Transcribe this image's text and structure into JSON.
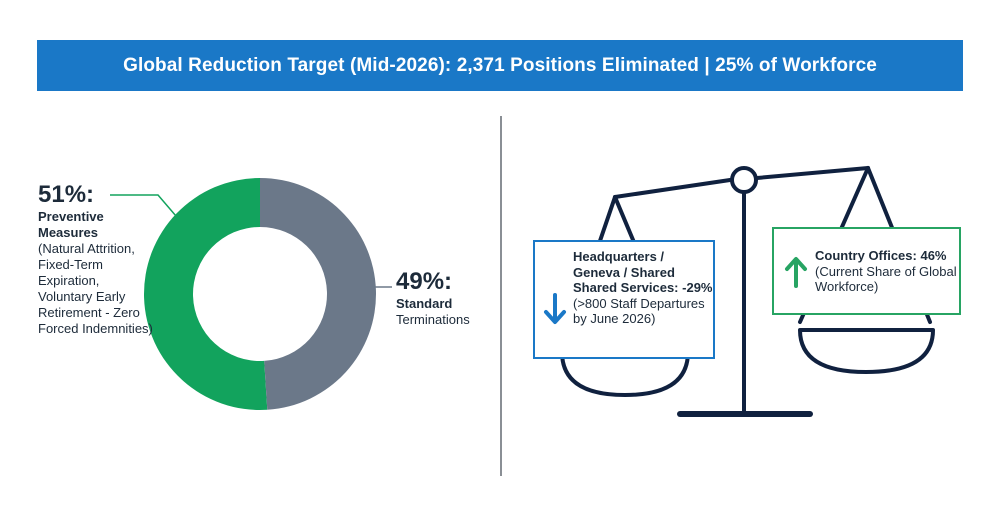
{
  "header": {
    "title": "Global Reduction Target (Mid-2026): 2,371 Positions Eliminated | 25% of Workforce"
  },
  "chart_data": {
    "type": "pie",
    "style": "donut",
    "slices": [
      {
        "pct_label": "51%:",
        "category": "Preventive Measures",
        "detail": "(Natural Attrition, Fixed-Term Expiration, Voluntary Early Retirement - Zero Forced Indemnities)",
        "value": 51,
        "color": "#12a35d"
      },
      {
        "pct_label": "49%:",
        "category": "Standard",
        "detail": "Terminations",
        "value": 49,
        "color": "#6b7889"
      }
    ]
  },
  "scale": {
    "color": "#10213f",
    "left_box": {
      "title": "Headquarters / Geneva / Shared Shared Services:",
      "value": "-29%",
      "detail": "(>800 Staff Departures by June 2026)",
      "icon": "arrow-down-icon",
      "color": "#1a78c7"
    },
    "right_box": {
      "title": "Country Offices:",
      "value": "46%",
      "detail": "(Current Share of Global Workforce)",
      "icon": "arrow-up-icon",
      "color": "#27a463"
    }
  }
}
